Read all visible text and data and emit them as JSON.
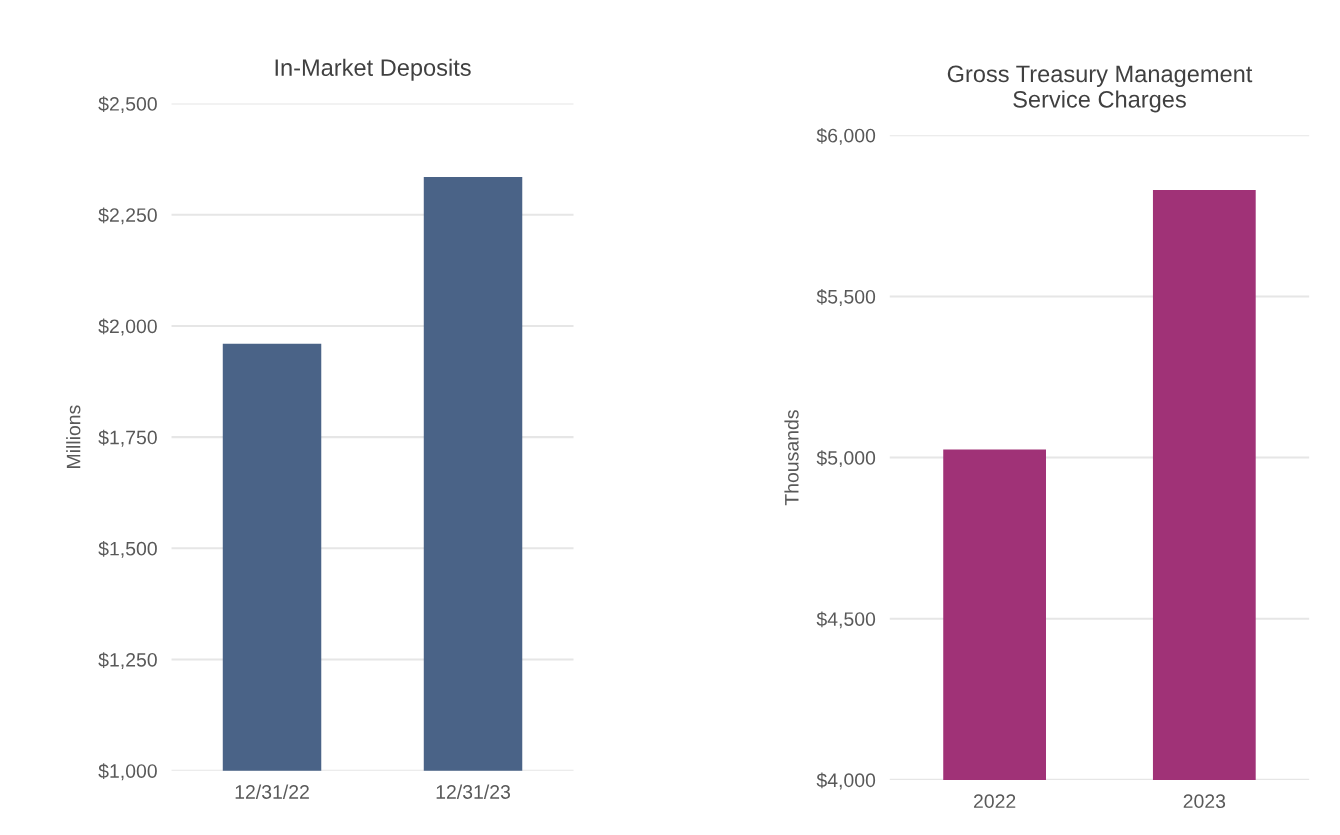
{
  "chart_data": [
    {
      "type": "bar",
      "title": "In-Market Deposits",
      "ylabel": "Millions",
      "categories": [
        "12/31/22",
        "12/31/23"
      ],
      "series": [
        {
          "color": "#4a6387",
          "values": [
            1960,
            2335
          ]
        }
      ],
      "ylim": [
        1000,
        2500
      ],
      "yticks": [
        {
          "value": 1000,
          "label": "$1,000"
        },
        {
          "value": 1250,
          "label": "$1,250"
        },
        {
          "value": 1500,
          "label": "$1,500"
        },
        {
          "value": 1750,
          "label": "$1,750"
        },
        {
          "value": 2000,
          "label": "$2,000"
        },
        {
          "value": 2250,
          "label": "$2,250"
        },
        {
          "value": 2500,
          "label": "$2,500"
        }
      ],
      "grid": "y",
      "legend": false
    },
    {
      "type": "bar",
      "title": "Gross Treasury Management\nService Charges",
      "ylabel": "Thousands",
      "categories": [
        "2022",
        "2023"
      ],
      "series": [
        {
          "color": "#a03277",
          "values": [
            5025,
            5830
          ]
        }
      ],
      "ylim": [
        4000,
        6000
      ],
      "yticks": [
        {
          "value": 4000,
          "label": "$4,000"
        },
        {
          "value": 4500,
          "label": "$4,500"
        },
        {
          "value": 5000,
          "label": "$5,000"
        },
        {
          "value": 5500,
          "label": "$5,500"
        },
        {
          "value": 6000,
          "label": "$6,000"
        }
      ],
      "grid": "y",
      "legend": false
    }
  ]
}
